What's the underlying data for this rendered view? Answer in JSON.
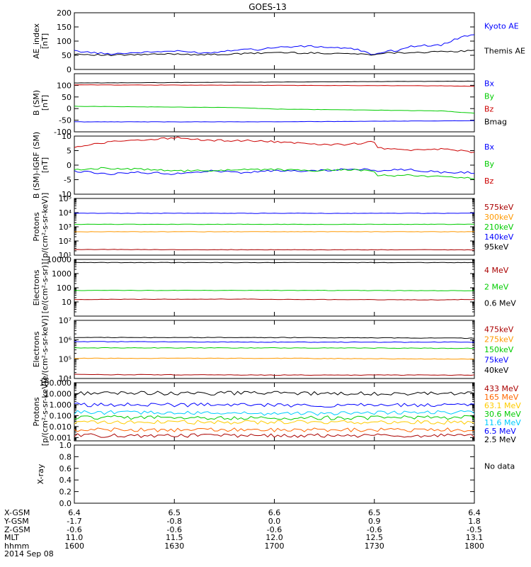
{
  "title": "GOES-13",
  "chart_data": [
    {
      "type": "line",
      "ylabel": "AE_index\n[nT]",
      "ylim": [
        0,
        200
      ],
      "yscale": "linear",
      "ticks": [
        0,
        50,
        100,
        150,
        200
      ],
      "tick_labels": [
        "0",
        "50",
        "100",
        "150",
        "200"
      ],
      "legend": [
        {
          "name": "Kyoto AE",
          "color": "#0000ff"
        },
        {
          "name": "Themis AE",
          "color": "#000000"
        }
      ],
      "series": [
        {
          "name": "Kyoto AE",
          "color": "#0000ff",
          "x": [
            1600,
            1610,
            1620,
            1630,
            1640,
            1645,
            1650,
            1655,
            1660,
            1670,
            1680,
            1685,
            1690,
            1695,
            1700,
            1705,
            1710,
            1715,
            1720,
            1725,
            1730,
            1735,
            1740,
            1745,
            1750,
            1755,
            1760,
            1770,
            1780,
            1790,
            1800
          ],
          "y": [
            65,
            55,
            60,
            65,
            58,
            65,
            72,
            70,
            78,
            82,
            76,
            70,
            52,
            66,
            80,
            90,
            72,
            92,
            60,
            55,
            55,
            60,
            80,
            85,
            85,
            110,
            125,
            123,
            145,
            130,
            160
          ]
        },
        {
          "name": "Themis AE",
          "color": "#000000",
          "x": [
            1600,
            1610,
            1620,
            1630,
            1640,
            1650,
            1660,
            1670,
            1680,
            1690,
            1700,
            1710,
            1720,
            1730,
            1740,
            1750,
            1760,
            1770,
            1780,
            1790,
            1800
          ],
          "y": [
            55,
            50,
            52,
            55,
            52,
            55,
            60,
            58,
            57,
            52,
            60,
            54,
            55,
            57,
            60,
            62,
            66,
            70,
            72,
            75,
            78
          ]
        }
      ]
    },
    {
      "type": "line",
      "ylabel": "B (SM)\n[nT]",
      "ylim": [
        -100,
        150
      ],
      "yscale": "linear",
      "ticks": [
        -100,
        -50,
        0,
        50,
        100
      ],
      "tick_labels": [
        "-100",
        "-50",
        "0",
        "50",
        "100"
      ],
      "legend": [
        {
          "name": "Bx",
          "color": "#0000ff"
        },
        {
          "name": "By",
          "color": "#00cc00"
        },
        {
          "name": "Bz",
          "color": "#cc0000"
        },
        {
          "name": "Bmag",
          "color": "#000000"
        }
      ],
      "series": [
        {
          "name": "Bmag",
          "color": "#000000",
          "x": [
            1600,
            1800
          ],
          "y": [
            110,
            118
          ]
        },
        {
          "name": "Bz",
          "color": "#cc0000",
          "x": [
            1600,
            1700,
            1750,
            1760,
            1800
          ],
          "y": [
            102,
            100,
            98,
            96,
            100
          ]
        },
        {
          "name": "By",
          "color": "#00cc00",
          "x": [
            1600,
            1650,
            1700,
            1750,
            1800
          ],
          "y": [
            10,
            4,
            -2,
            -10,
            -20
          ]
        },
        {
          "name": "Bx",
          "color": "#0000ff",
          "x": [
            1600,
            1700,
            1800
          ],
          "y": [
            -57,
            -57,
            -52
          ]
        }
      ]
    },
    {
      "type": "line",
      "ylabel": "B (SM)-IGRF (SM)\n[nT]",
      "ylim": [
        -10,
        10
      ],
      "yscale": "linear",
      "ticks": [
        -10,
        -5,
        0,
        5,
        10
      ],
      "tick_labels": [
        "-10",
        "-5",
        "0",
        "5",
        "10"
      ],
      "legend": [
        {
          "name": "Bx",
          "color": "#0000ff"
        },
        {
          "name": "By",
          "color": "#00cc00"
        },
        {
          "name": "Bz",
          "color": "#cc0000"
        }
      ],
      "series": [
        {
          "name": "Bz",
          "color": "#cc0000",
          "x": [
            1600,
            1610,
            1620,
            1630,
            1640,
            1650,
            1660,
            1670,
            1680,
            1690,
            1700,
            1710,
            1720,
            1730,
            1740,
            1750,
            1760,
            1770,
            1780,
            1790,
            1800
          ],
          "y": [
            6,
            8,
            8.5,
            9.5,
            8.5,
            8.5,
            8,
            7.5,
            7,
            8,
            7.5,
            4.5,
            5,
            6,
            5,
            5.5,
            4.5,
            4,
            4.5,
            5,
            5.5
          ]
        },
        {
          "name": "Bx",
          "color": "#0000ff",
          "x": [
            1600,
            1610,
            1620,
            1630,
            1640,
            1650,
            1660,
            1670,
            1680,
            1690,
            1700,
            1710,
            1720,
            1730,
            1740,
            1750,
            1760,
            1770,
            1780,
            1790,
            1800
          ],
          "y": [
            -2,
            -3,
            -2.5,
            -3,
            -2,
            -2.5,
            -2,
            -2,
            -1.5,
            -1.5,
            -2.5,
            -3,
            -2.5,
            -2,
            -1.5,
            -2.5,
            -2.5,
            -2,
            -2,
            -2,
            -1.5
          ]
        },
        {
          "name": "By",
          "color": "#00cc00",
          "x": [
            1600,
            1610,
            1620,
            1630,
            1640,
            1650,
            1660,
            1670,
            1680,
            1690,
            1700,
            1710,
            1720,
            1730,
            1740,
            1750,
            1760,
            1770,
            1780,
            1790,
            1800
          ],
          "y": [
            -1.5,
            -1,
            -1.5,
            -2,
            -2,
            -1.5,
            -1.5,
            -2,
            -1.5,
            -2,
            -2.5,
            -3,
            -3,
            -3.5,
            -3.5,
            -4,
            -4.5,
            -5,
            -5.5,
            -6,
            -6
          ]
        }
      ]
    },
    {
      "type": "line",
      "ylabel": "Protons\n[p/(cm²-s-sr-keV)]",
      "ylim": [
        10,
        100000
      ],
      "yscale": "log",
      "ticks": [
        10,
        100,
        1000,
        10000,
        100000
      ],
      "tick_labels": [
        "10¹",
        "10²",
        "10³",
        "10⁴",
        "10⁵"
      ],
      "legend": [
        {
          "name": "575keV",
          "color": "#aa0000"
        },
        {
          "name": "300keV",
          "color": "#ff9900"
        },
        {
          "name": "210keV",
          "color": "#00cc00"
        },
        {
          "name": "140keV",
          "color": "#0000ff"
        },
        {
          "name": "95keV",
          "color": "#000000"
        }
      ],
      "series": [
        {
          "name": "140keV",
          "color": "#0000ff",
          "x": [
            1600,
            1700,
            1800
          ],
          "y": [
            9000,
            9000,
            9000
          ]
        },
        {
          "name": "210keV",
          "color": "#00cc00",
          "x": [
            1600,
            1700,
            1800
          ],
          "y": [
            1500,
            1500,
            1500
          ]
        },
        {
          "name": "300keV",
          "color": "#ff9900",
          "x": [
            1600,
            1700,
            1800
          ],
          "y": [
            450,
            450,
            450
          ]
        },
        {
          "name": "575keV",
          "color": "#aa0000",
          "x": [
            1600,
            1700,
            1800
          ],
          "y": [
            25,
            24,
            24
          ]
        }
      ]
    },
    {
      "type": "line",
      "ylabel": "Electrons\n[e/(cm²-s-sr)]",
      "ylim": [
        1,
        10000
      ],
      "yscale": "log",
      "ticks": [
        10,
        100,
        1000,
        10000
      ],
      "tick_labels": [
        "10",
        "100",
        "1000",
        "10000"
      ],
      "legend": [
        {
          "name": "4 MeV",
          "color": "#aa0000"
        },
        {
          "name": "2 MeV",
          "color": "#00cc00"
        },
        {
          "name": "0.6 MeV",
          "color": "#000000"
        }
      ],
      "series": [
        {
          "name": "0.6 MeV",
          "color": "#000000",
          "x": [
            1600,
            1700,
            1800
          ],
          "y": [
            6000,
            6000,
            6000
          ]
        },
        {
          "name": "2 MeV",
          "color": "#00cc00",
          "x": [
            1600,
            1700,
            1800
          ],
          "y": [
            65,
            65,
            62
          ]
        },
        {
          "name": "4 MeV",
          "color": "#aa0000",
          "x": [
            1600,
            1650,
            1700,
            1750,
            1800
          ],
          "y": [
            15,
            16,
            15,
            14,
            15
          ]
        }
      ]
    },
    {
      "type": "line",
      "ylabel": "Electrons\n[e/(cm²-s-sr-keV)]",
      "ylim": [
        10000,
        10000000
      ],
      "yscale": "log",
      "ticks": [
        10000,
        100000,
        1000000,
        10000000
      ],
      "tick_labels": [
        "10⁴",
        "10⁵",
        "10⁶",
        "10⁷"
      ],
      "legend": [
        {
          "name": "475keV",
          "color": "#aa0000"
        },
        {
          "name": "275keV",
          "color": "#ff9900"
        },
        {
          "name": "150keV",
          "color": "#00cc00"
        },
        {
          "name": "75keV",
          "color": "#0000ff"
        },
        {
          "name": "40keV",
          "color": "#000000"
        }
      ],
      "series": [
        {
          "name": "40keV",
          "color": "#000000",
          "x": [
            1600,
            1700,
            1800
          ],
          "y": [
            1300000,
            1300000,
            1200000
          ]
        },
        {
          "name": "75keV",
          "color": "#0000ff",
          "x": [
            1600,
            1700,
            1800
          ],
          "y": [
            800000,
            750000,
            750000
          ]
        },
        {
          "name": "150keV",
          "color": "#00cc00",
          "x": [
            1600,
            1700,
            1800
          ],
          "y": [
            380000,
            380000,
            360000
          ]
        },
        {
          "name": "275keV",
          "color": "#ff9900",
          "x": [
            1600,
            1700,
            1800
          ],
          "y": [
            110000,
            110000,
            100000
          ]
        },
        {
          "name": "475keV",
          "color": "#aa0000",
          "x": [
            1600,
            1700,
            1800
          ],
          "y": [
            16000,
            15000,
            15000
          ]
        }
      ]
    },
    {
      "type": "line",
      "ylabel": "Protons\n[p/(cm²-s-sr-keV)]",
      "ylim": [
        0.0005,
        100
      ],
      "yscale": "log",
      "ticks": [
        0.001,
        0.01,
        0.1,
        1,
        10,
        100
      ],
      "tick_labels": [
        "0.001",
        "0.010",
        "0.100",
        "1.000",
        "10.000",
        "100.000"
      ],
      "legend": [
        {
          "name": "433 MeV",
          "color": "#aa0000"
        },
        {
          "name": "165 MeV",
          "color": "#ff6600"
        },
        {
          "name": "63.1 MeV",
          "color": "#ffcc00"
        },
        {
          "name": "30.6 MeV",
          "color": "#00cc00"
        },
        {
          "name": "11.6 MeV",
          "color": "#00ccff"
        },
        {
          "name": "6.5 MeV",
          "color": "#0000ff"
        },
        {
          "name": "2.5 MeV",
          "color": "#000000"
        }
      ],
      "series": [
        {
          "name": "2.5 MeV",
          "color": "#000000",
          "x": [
            1600,
            1700,
            1800
          ],
          "y": [
            11,
            11,
            10
          ]
        },
        {
          "name": "6.5 MeV",
          "color": "#0000ff",
          "x": [
            1600,
            1700,
            1800
          ],
          "y": [
            1.0,
            0.9,
            0.9
          ]
        },
        {
          "name": "11.6 MeV",
          "color": "#00ccff",
          "x": [
            1600,
            1700,
            1800
          ],
          "y": [
            0.2,
            0.15,
            0.2
          ]
        },
        {
          "name": "30.6 MeV",
          "color": "#00cc00",
          "x": [
            1600,
            1700,
            1800
          ],
          "y": [
            0.07,
            0.06,
            0.07
          ]
        },
        {
          "name": "63.1 MeV",
          "color": "#ffcc00",
          "x": [
            1600,
            1700,
            1800
          ],
          "y": [
            0.025,
            0.025,
            0.025
          ]
        },
        {
          "name": "165 MeV",
          "color": "#ff6600",
          "x": [
            1600,
            1700,
            1800
          ],
          "y": [
            0.005,
            0.005,
            0.005
          ]
        },
        {
          "name": "433 MeV",
          "color": "#aa0000",
          "x": [
            1600,
            1700,
            1800
          ],
          "y": [
            0.0015,
            0.0015,
            0.0015
          ]
        }
      ]
    },
    {
      "type": "line",
      "ylabel": "X-ray",
      "ylim": [
        0,
        1
      ],
      "yscale": "linear",
      "ticks": [
        0,
        0.2,
        0.4,
        0.6,
        0.8,
        1.0
      ],
      "tick_labels": [
        "0.0",
        "0.2",
        "0.4",
        "0.6",
        "0.8",
        "1.0"
      ],
      "legend": [
        {
          "name": "No data",
          "color": "#000000"
        }
      ],
      "series": []
    }
  ],
  "x_axis": {
    "rows": [
      "X-GSM",
      "Y-GSM",
      "Z-GSM",
      "MLT",
      "hhmm"
    ],
    "date": "2014 Sep 08",
    "ticks": [
      1600,
      1630,
      1700,
      1730,
      1800
    ],
    "columns": [
      [
        "6.4",
        "-1.7",
        "-0.6",
        "11.0",
        "1600"
      ],
      [
        "6.5",
        "-0.8",
        "-0.6",
        "11.5",
        "1630"
      ],
      [
        "6.6",
        "0.0",
        "-0.6",
        "12.0",
        "1700"
      ],
      [
        "6.5",
        "0.9",
        "-0.6",
        "12.5",
        "1730"
      ],
      [
        "6.4",
        "1.8",
        "-0.5",
        "13.1",
        "1800"
      ]
    ]
  }
}
